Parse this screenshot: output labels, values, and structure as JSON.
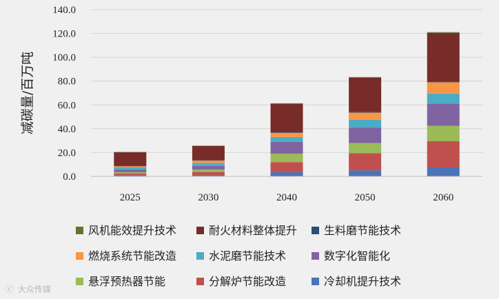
{
  "chart_data": {
    "type": "bar",
    "stacked": true,
    "ylabel": "减碳量/百万吨",
    "xlabel": "",
    "ylim": [
      0,
      140
    ],
    "yticks": [
      "0.0",
      "20.0",
      "40.0",
      "60.0",
      "80.0",
      "100.0",
      "120.0",
      "140.0"
    ],
    "grid": true,
    "legend_position": "bottom",
    "categories": [
      "2025",
      "2030",
      "2040",
      "2050",
      "2060"
    ],
    "series": [
      {
        "name": "冷却机提升技术",
        "color": "#4a73b8",
        "values": [
          1.0,
          1.2,
          3.5,
          5.0,
          7.5
        ]
      },
      {
        "name": "分解炉节能改造",
        "color": "#c0504d",
        "values": [
          1.5,
          2.5,
          8.5,
          14.5,
          22.0
        ]
      },
      {
        "name": "悬浮预热器节能",
        "color": "#9bbb59",
        "values": [
          1.0,
          2.0,
          7.0,
          8.5,
          13.0
        ]
      },
      {
        "name": "数字化智能化",
        "color": "#8064a2",
        "values": [
          2.0,
          3.0,
          10.0,
          13.0,
          18.5
        ]
      },
      {
        "name": "水泥磨节能技术",
        "color": "#4bacc6",
        "values": [
          2.0,
          2.5,
          4.0,
          6.5,
          8.5
        ]
      },
      {
        "name": "燃烧系统节能改造",
        "color": "#f79646",
        "values": [
          1.0,
          2.0,
          3.5,
          6.0,
          9.5
        ]
      },
      {
        "name": "生料磨节能技术",
        "color": "#2c4d75",
        "values": [
          0.2,
          0.3,
          0.4,
          0.4,
          0.5
        ]
      },
      {
        "name": "耐火材料整体提升",
        "color": "#772c2a",
        "values": [
          11.5,
          12.0,
          24.0,
          29.0,
          41.0
        ]
      },
      {
        "name": "风机能效提升技术",
        "color": "#5f7530",
        "values": [
          0.3,
          0.3,
          0.5,
          0.5,
          0.6
        ]
      }
    ],
    "legend_order": [
      "风机能效提升技术",
      "耐火材料整体提升",
      "生料磨节能技术",
      "燃烧系统节能改造",
      "水泥磨节能技术",
      "数字化智能化",
      "悬浮预热器节能",
      "分解炉节能改造",
      "冷却机提升技术"
    ]
  },
  "watermark": "大众传媒"
}
